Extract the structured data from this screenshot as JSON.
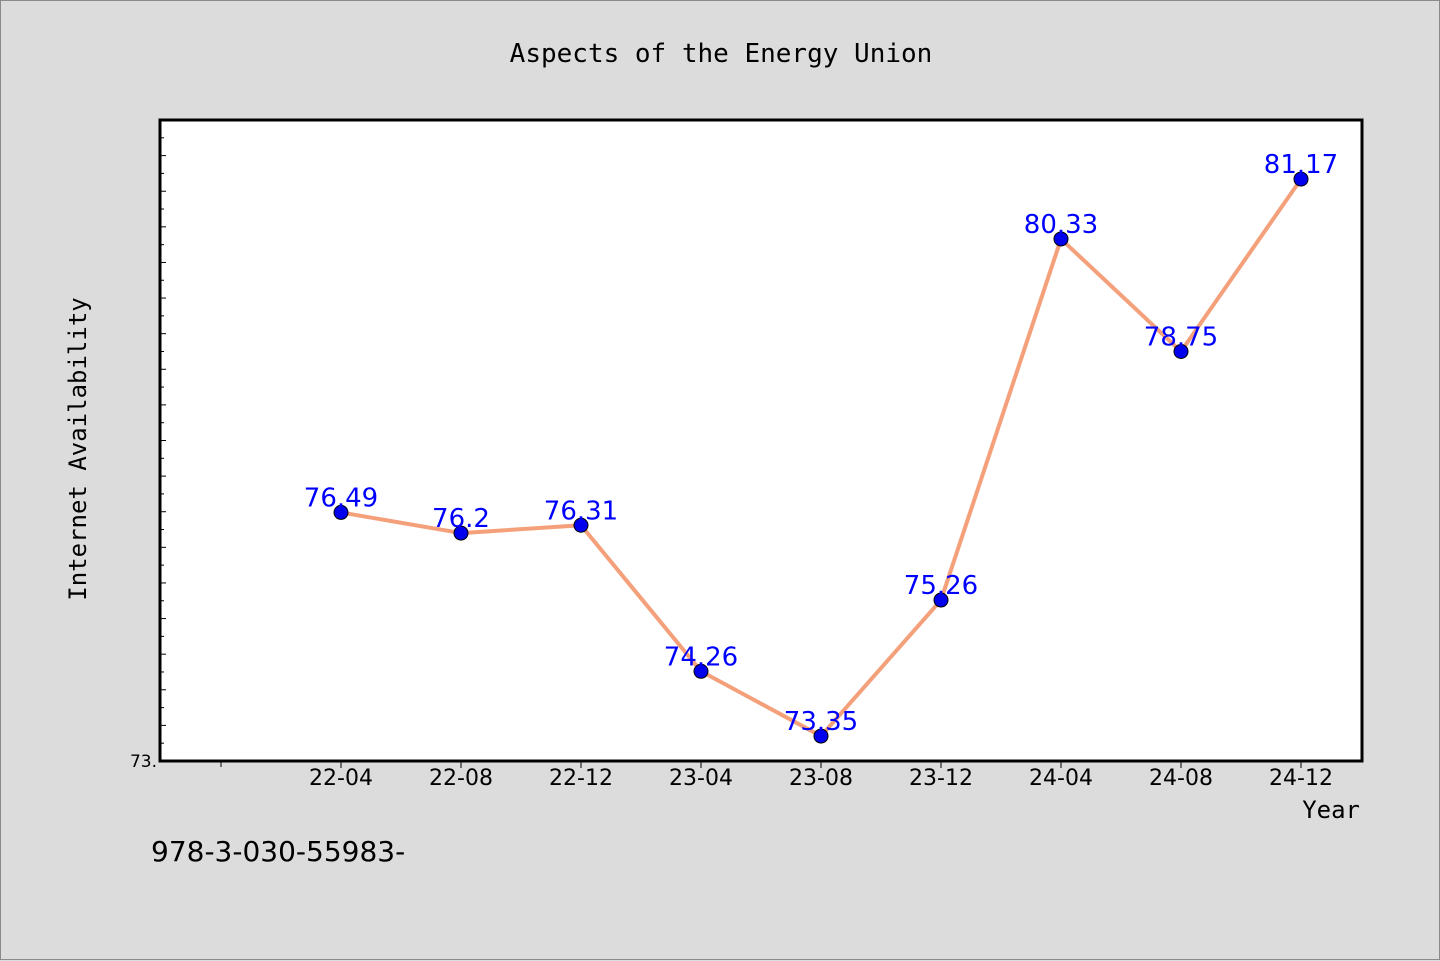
{
  "chart_data": {
    "type": "line",
    "title": "Aspects of the Energy Union",
    "xlabel": "Year",
    "ylabel": "Internet Availability",
    "categories": [
      "22-04",
      "22-08",
      "22-12",
      "23-04",
      "23-08",
      "23-12",
      "24-04",
      "24-08",
      "24-12"
    ],
    "series": [
      {
        "values": [
          76.49,
          76.2,
          76.31,
          74.26,
          73.35,
          75.26,
          80.33,
          78.75,
          81.17
        ],
        "labels": [
          "76.49",
          "76.2",
          "76.31",
          "74.26",
          "73.35",
          "75.26",
          "80.33",
          "78.75",
          "81.17"
        ],
        "line_color": "#f4a07a",
        "marker_color": "#0000ee"
      }
    ],
    "ylim": [
      73,
      82
    ],
    "y_tick_label": "73.",
    "grid": false,
    "legend": "none"
  },
  "footer": {
    "note": "978-3-030-55983-"
  },
  "colors": {
    "background": "#dcdcdc",
    "plot_area": "#ffffff",
    "label_color": "#0000ff"
  }
}
